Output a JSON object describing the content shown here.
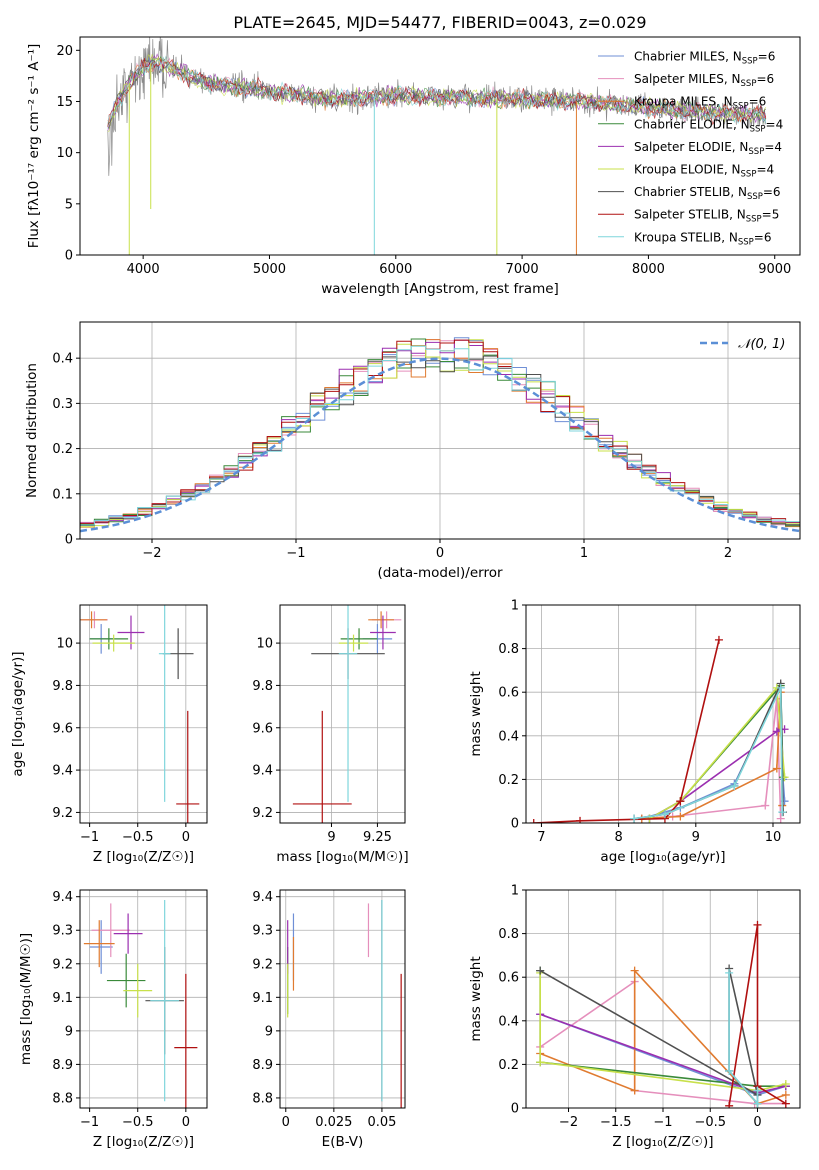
{
  "figure_title": "PLATE=2645, MJD=54477, FIBERID=0043, z=0.029",
  "colors": {
    "Chabrier MILES": "#6f8fd6",
    "Salpeter MILES": "#e58fbc",
    "Kroupa MILES": "#e07b30",
    "Chabrier ELODIE": "#3a8a3a",
    "Salpeter ELODIE": "#9b2fb0",
    "Kroupa ELODIE": "#c8e04a",
    "Chabrier STELIB": "#505050",
    "Salpeter STELIB": "#b01010",
    "Kroupa STELIB": "#7fd6dc",
    "data": "#8a8a8a",
    "normal": "#5b8fd6"
  },
  "chart_data": [
    {
      "id": "spectrum",
      "type": "line",
      "title": "PLATE=2645, MJD=54477, FIBERID=0043, z=0.029",
      "xlabel": "wavelength [Angstrom, rest frame]",
      "ylabel": "Flux [fλ10⁻¹⁷ erg cm⁻² s⁻¹ A⁻¹]",
      "xlim": [
        3500,
        9200
      ],
      "ylim": [
        0,
        21.3
      ],
      "xticks": [
        4000,
        5000,
        6000,
        7000,
        8000,
        9000
      ],
      "yticks": [
        0,
        5,
        10,
        15,
        20
      ],
      "grid": false,
      "legend_position": "top-right",
      "legend": [
        {
          "name": "Chabrier MILES",
          "N_SSP": 6
        },
        {
          "name": "Salpeter MILES",
          "N_SSP": 6
        },
        {
          "name": "Kroupa MILES",
          "N_SSP": 6
        },
        {
          "name": "Chabrier ELODIE",
          "N_SSP": 4
        },
        {
          "name": "Salpeter ELODIE",
          "N_SSP": 4
        },
        {
          "name": "Kroupa ELODIE",
          "N_SSP": 4
        },
        {
          "name": "Chabrier STELIB",
          "N_SSP": 6
        },
        {
          "name": "Salpeter STELIB",
          "N_SSP": 5
        },
        {
          "name": "Kroupa STELIB",
          "N_SSP": 6
        }
      ],
      "data_range": [
        3720,
        8930
      ],
      "continuum": [
        [
          3720,
          12.5
        ],
        [
          3800,
          15
        ],
        [
          3900,
          17
        ],
        [
          4000,
          18.3
        ],
        [
          4100,
          19
        ],
        [
          4300,
          17.8
        ],
        [
          4500,
          16.8
        ],
        [
          5000,
          16.0
        ],
        [
          5500,
          15.2
        ],
        [
          6000,
          15.6
        ],
        [
          6500,
          15.4
        ],
        [
          7000,
          15.2
        ],
        [
          7500,
          15.0
        ],
        [
          8000,
          14.4
        ],
        [
          8500,
          13.9
        ],
        [
          8930,
          13.7
        ]
      ],
      "features": [
        {
          "x": 3890,
          "to": 0,
          "series": "Kroupa ELODIE"
        },
        {
          "x": 4060,
          "to": 4.5,
          "series": "Kroupa ELODIE"
        },
        {
          "x": 5830,
          "to": 0,
          "series": "Kroupa STELIB"
        },
        {
          "x": 6800,
          "to": 0,
          "series": "Kroupa ELODIE"
        },
        {
          "x": 7430,
          "to": 0,
          "series": "Kroupa MILES"
        }
      ]
    },
    {
      "id": "residuals",
      "type": "line",
      "xlabel": "(data-model)/error",
      "ylabel": "Normed distribution",
      "xlim": [
        -2.5,
        2.5
      ],
      "ylim": [
        0,
        0.48
      ],
      "xticks": [
        -2,
        -1,
        0,
        1,
        2
      ],
      "yticks": [
        0.0,
        0.1,
        0.2,
        0.3,
        0.4
      ],
      "grid": true,
      "legend_position": "top-right",
      "legend": [
        {
          "name": "𝒩(0, 1)"
        }
      ],
      "bin_width": 0.1,
      "series_count": 9
    },
    {
      "id": "age-Z",
      "type": "scatter",
      "xlabel": "Z [log₁₀(Z/Z☉)]",
      "ylabel": "age  [log₁₀(age/yr)]",
      "xlim": [
        -1.1,
        0.22
      ],
      "ylim": [
        9.15,
        10.18
      ],
      "xticks": [
        -1.0,
        -0.5,
        0.0
      ],
      "yticks": [
        9.2,
        9.4,
        9.6,
        9.8,
        10.0
      ],
      "grid": true,
      "points": [
        {
          "s": "Chabrier MILES",
          "x": -0.88,
          "y": 10.02,
          "xerr": 0.12,
          "yerr": 0.07
        },
        {
          "s": "Salpeter MILES",
          "x": -0.95,
          "y": 10.11,
          "xerr": 0.14,
          "yerr": 0.04
        },
        {
          "s": "Kroupa MILES",
          "x": -0.98,
          "y": 10.11,
          "xerr": 0.16,
          "yerr": 0.04
        },
        {
          "s": "Chabrier ELODIE",
          "x": -0.8,
          "y": 10.02,
          "xerr": 0.2,
          "yerr": 0.05
        },
        {
          "s": "Salpeter ELODIE",
          "x": -0.57,
          "y": 10.05,
          "xerr": 0.14,
          "yerr": 0.08
        },
        {
          "s": "Kroupa ELODIE",
          "x": -0.75,
          "y": 10.0,
          "xerr": 0.22,
          "yerr": 0.04
        },
        {
          "s": "Chabrier STELIB",
          "x": -0.08,
          "y": 9.95,
          "xerr": 0.16,
          "yerr": 0.12
        },
        {
          "s": "Salpeter STELIB",
          "x": 0.02,
          "y": 9.24,
          "xerr": 0.12,
          "yerr": 0.44
        },
        {
          "s": "Kroupa STELIB",
          "x": -0.22,
          "y": 9.95,
          "xerr": 0.06,
          "yerr": 0.7
        }
      ]
    },
    {
      "id": "age-mass",
      "type": "scatter",
      "xlabel": "mass [log₁₀(M/M☉)]",
      "xlim": [
        8.72,
        9.4
      ],
      "ylim": [
        9.15,
        10.18
      ],
      "xticks": [
        9.0,
        9.25
      ],
      "yticks": [
        9.2,
        9.4,
        9.6,
        9.8,
        10.0
      ],
      "grid": true,
      "points": [
        {
          "s": "Chabrier MILES",
          "x": 9.25,
          "y": 10.02,
          "xerr": 0.08,
          "yerr": 0.07
        },
        {
          "s": "Salpeter MILES",
          "x": 9.3,
          "y": 10.11,
          "xerr": 0.08,
          "yerr": 0.04
        },
        {
          "s": "Kroupa MILES",
          "x": 9.27,
          "y": 10.11,
          "xerr": 0.07,
          "yerr": 0.04
        },
        {
          "s": "Chabrier ELODIE",
          "x": 9.15,
          "y": 10.02,
          "xerr": 0.1,
          "yerr": 0.05
        },
        {
          "s": "Salpeter ELODIE",
          "x": 9.28,
          "y": 10.05,
          "xerr": 0.07,
          "yerr": 0.08
        },
        {
          "s": "Kroupa ELODIE",
          "x": 9.12,
          "y": 10.0,
          "xerr": 0.08,
          "yerr": 0.04
        },
        {
          "s": "Chabrier STELIB",
          "x": 9.09,
          "y": 9.95,
          "xerr": 0.2,
          "yerr": 0.12
        },
        {
          "s": "Salpeter STELIB",
          "x": 8.95,
          "y": 9.24,
          "xerr": 0.16,
          "yerr": 0.44
        },
        {
          "s": "Kroupa STELIB",
          "x": 9.09,
          "y": 9.95,
          "xerr": 0.05,
          "yerr": 0.7
        }
      ]
    },
    {
      "id": "weight-age",
      "type": "line",
      "xlabel": "age  [log₁₀(age/yr)]",
      "ylabel": "mass weight",
      "xlim": [
        6.8,
        10.35
      ],
      "ylim": [
        0,
        1.0
      ],
      "xticks": [
        7,
        8,
        9,
        10
      ],
      "yticks": [
        0.0,
        0.2,
        0.4,
        0.6,
        0.8,
        1.0
      ],
      "grid": true,
      "series": [
        {
          "name": "Chabrier MILES",
          "points": [
            [
              8.3,
              0.02
            ],
            [
              8.8,
              0.07
            ],
            [
              9.5,
              0.18
            ],
            [
              10.1,
              0.62
            ],
            [
              10.13,
              0.2
            ],
            [
              10.15,
              0.1
            ]
          ]
        },
        {
          "name": "Salpeter MILES",
          "points": [
            [
              8.3,
              0.02
            ],
            [
              8.7,
              0.03
            ],
            [
              9.9,
              0.08
            ],
            [
              10.05,
              0.57
            ],
            [
              10.1,
              0.02
            ]
          ]
        },
        {
          "name": "Kroupa MILES",
          "points": [
            [
              8.3,
              0.02
            ],
            [
              8.8,
              0.03
            ],
            [
              10.05,
              0.25
            ],
            [
              10.1,
              0.6
            ],
            [
              10.12,
              0.08
            ]
          ]
        },
        {
          "name": "Chabrier ELODIE",
          "points": [
            [
              8.4,
              0.02
            ],
            [
              8.8,
              0.1
            ],
            [
              10.1,
              0.63
            ],
            [
              10.13,
              0.21
            ]
          ]
        },
        {
          "name": "Salpeter ELODIE",
          "points": [
            [
              8.4,
              0.02
            ],
            [
              8.8,
              0.1
            ],
            [
              10.05,
              0.42
            ],
            [
              10.1,
              0.43
            ],
            [
              10.15,
              0.43
            ]
          ]
        },
        {
          "name": "Kroupa ELODIE",
          "points": [
            [
              8.4,
              0.02
            ],
            [
              8.8,
              0.1
            ],
            [
              10.05,
              0.62
            ],
            [
              10.15,
              0.21
            ]
          ]
        },
        {
          "name": "Chabrier STELIB",
          "points": [
            [
              8.2,
              0.02
            ],
            [
              8.6,
              0.04
            ],
            [
              9.5,
              0.17
            ],
            [
              10.1,
              0.64
            ],
            [
              10.13,
              0.05
            ]
          ]
        },
        {
          "name": "Salpeter STELIB",
          "points": [
            [
              6.9,
              0.0
            ],
            [
              7.5,
              0.01
            ],
            [
              8.6,
              0.02
            ],
            [
              8.8,
              0.1
            ],
            [
              9.3,
              0.84
            ]
          ]
        },
        {
          "name": "Kroupa STELIB",
          "points": [
            [
              8.2,
              0.02
            ],
            [
              8.6,
              0.04
            ],
            [
              9.5,
              0.17
            ],
            [
              10.1,
              0.62
            ],
            [
              10.12,
              0.05
            ]
          ]
        }
      ]
    },
    {
      "id": "mass-Z",
      "type": "scatter",
      "xlabel": "Z [log₁₀(Z/Z☉)]",
      "ylabel": "mass [log₁₀(M/M☉)]",
      "xlim": [
        -1.1,
        0.22
      ],
      "ylim": [
        8.77,
        9.42
      ],
      "xticks": [
        -1.0,
        -0.5,
        0.0
      ],
      "yticks": [
        8.8,
        8.9,
        9.0,
        9.1,
        9.2,
        9.3,
        9.4
      ],
      "grid": true,
      "points": [
        {
          "s": "Chabrier MILES",
          "x": -0.88,
          "y": 9.25,
          "xerr": 0.12,
          "yerr": 0.08
        },
        {
          "s": "Salpeter MILES",
          "x": -0.78,
          "y": 9.3,
          "xerr": 0.2,
          "yerr": 0.08
        },
        {
          "s": "Kroupa MILES",
          "x": -0.9,
          "y": 9.26,
          "xerr": 0.16,
          "yerr": 0.07
        },
        {
          "s": "Chabrier ELODIE",
          "x": -0.62,
          "y": 9.15,
          "xerr": 0.2,
          "yerr": 0.08
        },
        {
          "s": "Salpeter ELODIE",
          "x": -0.6,
          "y": 9.29,
          "xerr": 0.15,
          "yerr": 0.06
        },
        {
          "s": "Kroupa ELODIE",
          "x": -0.5,
          "y": 9.12,
          "xerr": 0.15,
          "yerr": 0.08
        },
        {
          "s": "Chabrier STELIB",
          "x": -0.22,
          "y": 9.09,
          "xerr": 0.2,
          "yerr": 0.16
        },
        {
          "s": "Salpeter STELIB",
          "x": 0.0,
          "y": 8.95,
          "xerr": 0.12,
          "yerr": 0.22
        },
        {
          "s": "Kroupa STELIB",
          "x": -0.22,
          "y": 9.09,
          "xerr": 0.15,
          "yerr": 0.3
        }
      ]
    },
    {
      "id": "mass-EBV",
      "type": "scatter",
      "xlabel": "E(B-V)",
      "xlim": [
        -0.003,
        0.062
      ],
      "ylim": [
        8.77,
        9.42
      ],
      "xticks": [
        0.0,
        0.025,
        0.05
      ],
      "yticks": [
        8.8,
        8.9,
        9.0,
        9.1,
        9.2,
        9.3,
        9.4
      ],
      "grid": true,
      "points": [
        {
          "s": "Chabrier MILES",
          "x": 0.004,
          "y": 9.25,
          "yerr": 0.1
        },
        {
          "s": "Salpeter MILES",
          "x": 0.043,
          "y": 9.3,
          "yerr": 0.08
        },
        {
          "s": "Kroupa MILES",
          "x": 0.004,
          "y": 9.2,
          "yerr": 0.08
        },
        {
          "s": "Chabrier ELODIE",
          "x": 0.001,
          "y": 9.15,
          "yerr": 0.1
        },
        {
          "s": "Salpeter ELODIE",
          "x": 0.001,
          "y": 9.25,
          "yerr": 0.08
        },
        {
          "s": "Kroupa ELODIE",
          "x": 0.001,
          "y": 9.12,
          "yerr": 0.08
        },
        {
          "s": "Chabrier STELIB",
          "x": 0.05,
          "y": 9.09,
          "yerr": 0.3
        },
        {
          "s": "Salpeter STELIB",
          "x": 0.06,
          "y": 8.95,
          "yerr": 0.22
        },
        {
          "s": "Kroupa STELIB",
          "x": 0.05,
          "y": 9.09,
          "yerr": 0.3
        }
      ]
    },
    {
      "id": "weight-Z",
      "type": "line",
      "xlabel": "Z [log₁₀(Z/Z☉)]",
      "ylabel": "mass weight",
      "xlim": [
        -2.45,
        0.45
      ],
      "ylim": [
        0,
        1.0
      ],
      "xticks": [
        -2.0,
        -1.5,
        -1.0,
        -0.5,
        0.0
      ],
      "yticks": [
        0.0,
        0.2,
        0.4,
        0.6,
        0.8,
        1.0
      ],
      "grid": true,
      "series": [
        {
          "name": "Chabrier MILES",
          "points": [
            [
              -2.3,
              0.43
            ],
            [
              0.0,
              0.06
            ],
            [
              0.3,
              0.1
            ]
          ]
        },
        {
          "name": "Salpeter MILES",
          "points": [
            [
              -2.3,
              0.28
            ],
            [
              -1.3,
              0.58
            ],
            [
              -1.3,
              0.08
            ],
            [
              -0.03,
              0.02
            ],
            [
              0.3,
              0.02
            ]
          ]
        },
        {
          "name": "Kroupa MILES",
          "points": [
            [
              -2.3,
              0.25
            ],
            [
              -1.3,
              0.08
            ],
            [
              -1.3,
              0.63
            ],
            [
              0.0,
              0.02
            ],
            [
              0.3,
              0.06
            ]
          ]
        },
        {
          "name": "Chabrier ELODIE",
          "points": [
            [
              -2.3,
              0.63
            ],
            [
              -2.3,
              0.21
            ],
            [
              0.0,
              0.1
            ],
            [
              0.3,
              0.1
            ]
          ]
        },
        {
          "name": "Salpeter ELODIE",
          "points": [
            [
              -2.3,
              0.43
            ],
            [
              0.0,
              0.07
            ],
            [
              0.3,
              0.1
            ]
          ]
        },
        {
          "name": "Kroupa ELODIE",
          "points": [
            [
              -2.3,
              0.62
            ],
            [
              -2.3,
              0.21
            ],
            [
              0.0,
              0.08
            ],
            [
              0.3,
              0.11
            ]
          ]
        },
        {
          "name": "Chabrier STELIB",
          "points": [
            [
              -2.3,
              0.63
            ],
            [
              0.0,
              0.06
            ],
            [
              -0.3,
              0.64
            ],
            [
              -0.3,
              0.17
            ],
            [
              0.0,
              0.02
            ]
          ]
        },
        {
          "name": "Salpeter STELIB",
          "points": [
            [
              -0.3,
              0.01
            ],
            [
              0.0,
              0.84
            ],
            [
              0.0,
              0.1
            ],
            [
              0.3,
              0.02
            ]
          ]
        },
        {
          "name": "Kroupa STELIB",
          "points": [
            [
              -0.3,
              0.62
            ],
            [
              -0.3,
              0.17
            ],
            [
              0.0,
              0.02
            ],
            [
              0.0,
              0.08
            ]
          ]
        }
      ]
    }
  ]
}
